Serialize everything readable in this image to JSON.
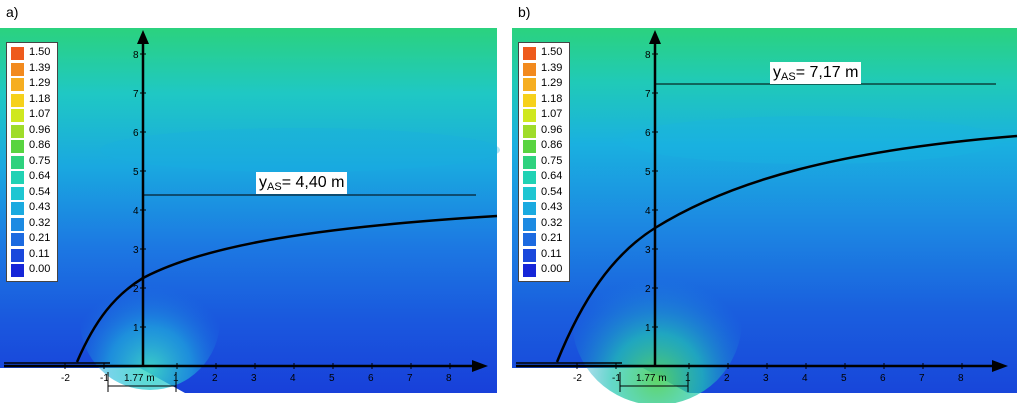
{
  "legend": {
    "values": [
      "1.50",
      "1.39",
      "1.29",
      "1.18",
      "1.07",
      "0.96",
      "0.86",
      "0.75",
      "0.64",
      "0.54",
      "0.43",
      "0.32",
      "0.21",
      "0.11",
      "0.00"
    ],
    "colors": [
      "#ee5a1c",
      "#f28a1e",
      "#f6ae20",
      "#f6d11c",
      "#cfe81e",
      "#9fdc2a",
      "#58d440",
      "#2ed27e",
      "#20d2b4",
      "#1ec6d2",
      "#1aaae0",
      "#1c8ae2",
      "#1c6ae0",
      "#1a48dc",
      "#1626d8"
    ]
  },
  "panels": [
    {
      "label": "a)",
      "annotation": {
        "symbol": "y",
        "subscript": "AS",
        "value": "= 4,40 m"
      },
      "dimension": "1.77 m",
      "y_ticks": [
        "1",
        "2",
        "3",
        "4",
        "5",
        "6",
        "7",
        "8"
      ],
      "x_ticks": [
        "-2",
        "-1",
        "1",
        "2",
        "3",
        "4",
        "5",
        "6",
        "7",
        "8"
      ],
      "level_y": 4.4
    },
    {
      "label": "b)",
      "annotation": {
        "symbol": "y",
        "subscript": "AS",
        "value": "= 7,17 m"
      },
      "dimension": "1.77 m",
      "y_ticks": [
        "1",
        "2",
        "3",
        "4",
        "5",
        "6",
        "7",
        "8"
      ],
      "x_ticks": [
        "-2",
        "-1",
        "1",
        "2",
        "3",
        "4",
        "5",
        "6",
        "7",
        "8"
      ],
      "level_y": 7.17
    }
  ]
}
